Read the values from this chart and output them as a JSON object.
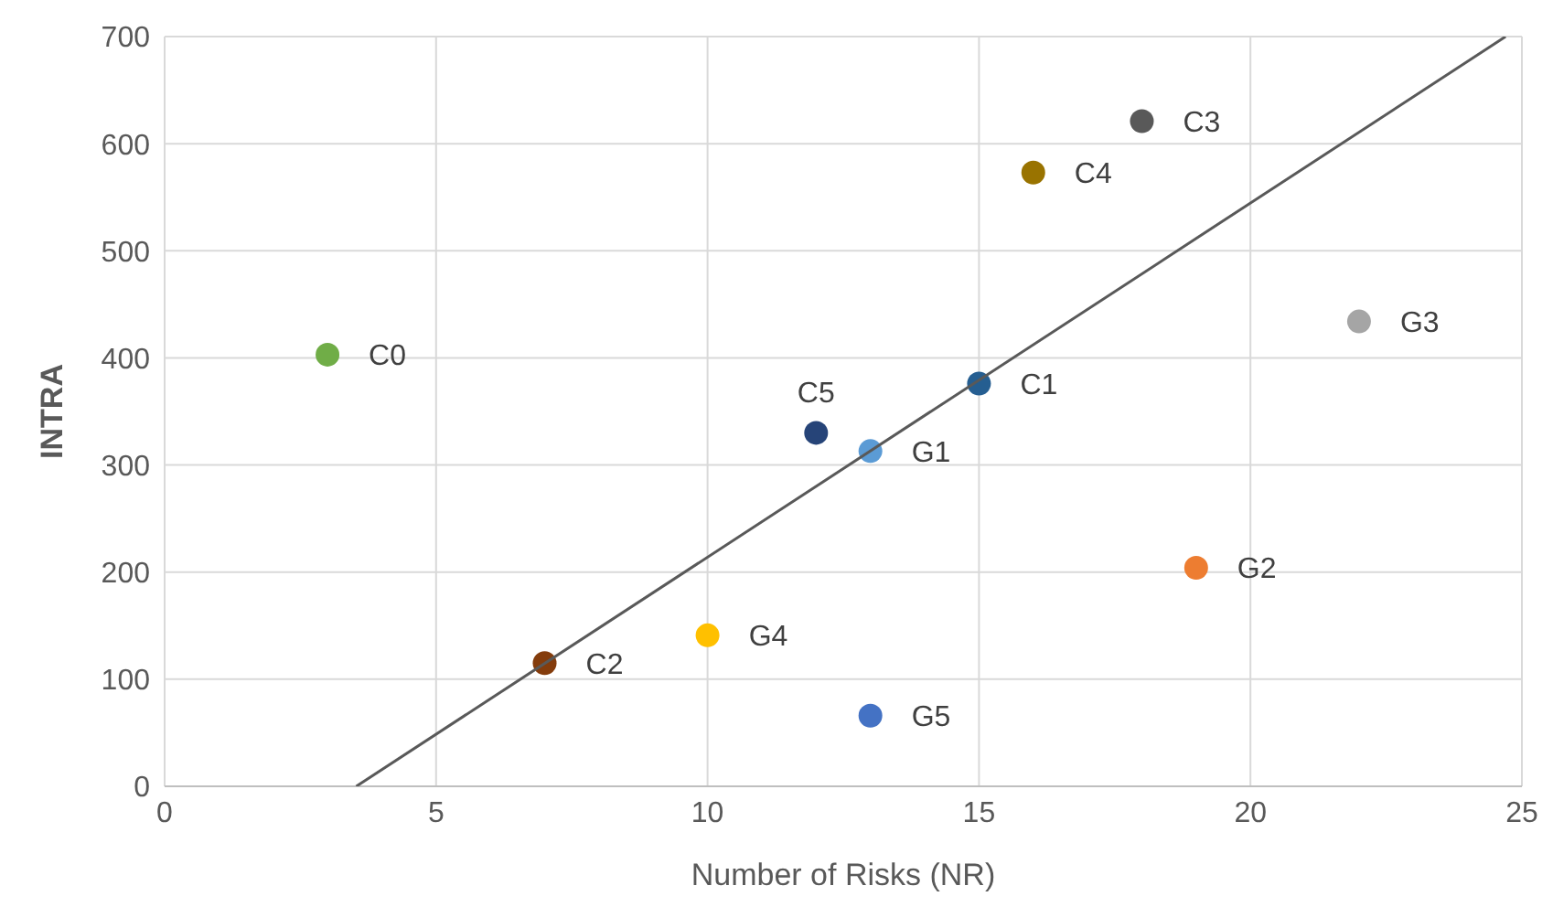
{
  "chart_data": {
    "type": "scatter",
    "xlabel": "Number of Risks (NR)",
    "ylabel": "INTRA",
    "xlim": [
      0,
      25
    ],
    "xticks": [
      0,
      5,
      10,
      15,
      20,
      25
    ],
    "ylim": [
      0,
      700
    ],
    "yticks": [
      0,
      100,
      200,
      300,
      400,
      500,
      600,
      700
    ],
    "grid": true,
    "marker": "circle",
    "series": [
      {
        "name": "C0",
        "color": "#70ad47",
        "x": [
          3
        ],
        "values": [
          403
        ]
      },
      {
        "name": "C1",
        "color": "#255e91",
        "x": [
          15
        ],
        "values": [
          376
        ]
      },
      {
        "name": "C2",
        "color": "#843c0c",
        "x": [
          7
        ],
        "values": [
          115
        ]
      },
      {
        "name": "C3",
        "color": "#595959",
        "x": [
          18
        ],
        "values": [
          621
        ]
      },
      {
        "name": "C4",
        "color": "#997300",
        "x": [
          16
        ],
        "values": [
          573
        ]
      },
      {
        "name": "C5",
        "color": "#264478",
        "x": [
          12
        ],
        "values": [
          330
        ]
      },
      {
        "name": "G1",
        "color": "#5b9bd5",
        "x": [
          13
        ],
        "values": [
          313
        ]
      },
      {
        "name": "G2",
        "color": "#ed7d31",
        "x": [
          19
        ],
        "values": [
          204
        ]
      },
      {
        "name": "G3",
        "color": "#a5a5a5",
        "x": [
          22
        ],
        "values": [
          434
        ]
      },
      {
        "name": "G4",
        "color": "#ffc000",
        "x": [
          10
        ],
        "values": [
          141
        ]
      },
      {
        "name": "G5",
        "color": "#4472c4",
        "x": [
          13
        ],
        "values": [
          66
        ]
      },
      {
        "type": "line",
        "marker": "none",
        "color": "#595959",
        "x": [
          3.53,
          24.7
        ],
        "values": [
          0,
          700
        ]
      }
    ]
  }
}
